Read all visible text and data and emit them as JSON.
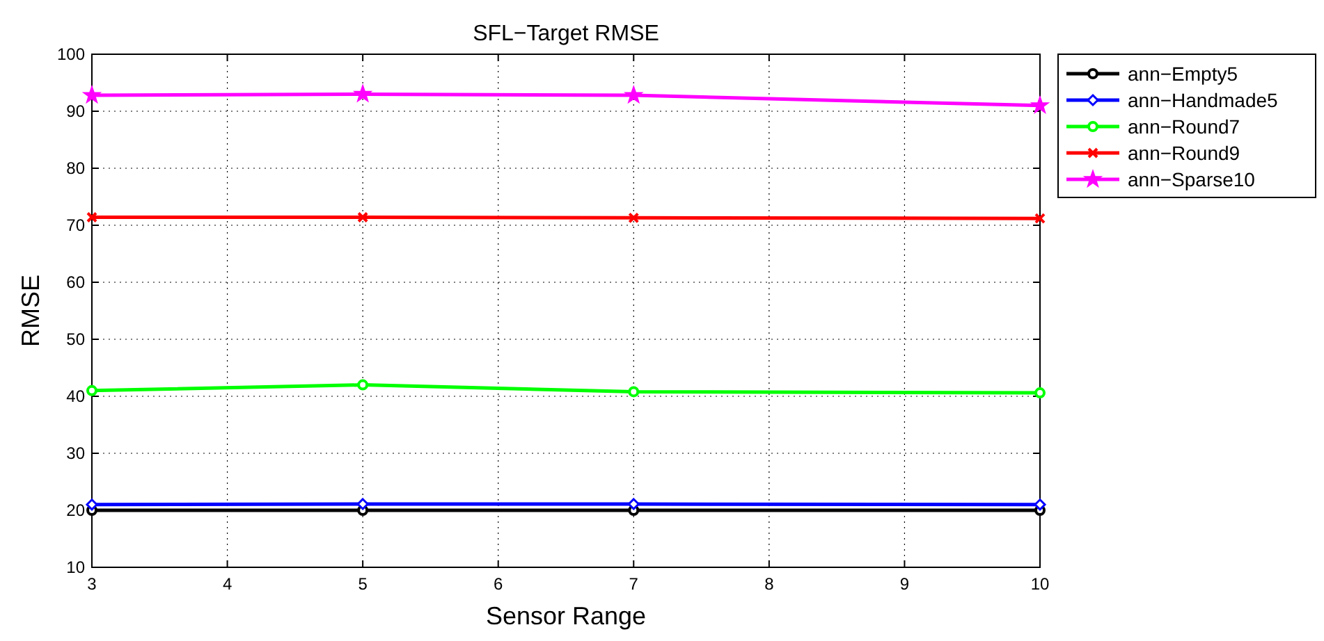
{
  "chart_data": {
    "type": "line",
    "title": "SFL−Target RMSE",
    "xlabel": "Sensor Range",
    "ylabel": "RMSE",
    "x": [
      3,
      5,
      7,
      10
    ],
    "series": [
      {
        "name": "ann−Empty5",
        "color": "#000000",
        "marker": "circle",
        "values": [
          20,
          20,
          20,
          20
        ]
      },
      {
        "name": "ann−Handmade5",
        "color": "#0000ff",
        "marker": "diamond",
        "values": [
          21,
          21.1,
          21.1,
          21
        ]
      },
      {
        "name": "ann−Round7",
        "color": "#00ff00",
        "marker": "circle",
        "values": [
          41,
          42,
          40.8,
          40.6
        ]
      },
      {
        "name": "ann−Round9",
        "color": "#ff0000",
        "marker": "cross",
        "values": [
          71.4,
          71.4,
          71.3,
          71.2
        ]
      },
      {
        "name": "ann−Sparse10",
        "color": "#ff00ff",
        "marker": "star",
        "values": [
          92.8,
          93,
          92.8,
          91
        ]
      }
    ],
    "xlim": [
      3,
      10
    ],
    "xticks": [
      3,
      4,
      5,
      6,
      7,
      8,
      9,
      10
    ],
    "ylim": [
      10,
      100
    ],
    "yticks": [
      10,
      20,
      30,
      40,
      50,
      60,
      70,
      80,
      90,
      100
    ],
    "grid": true,
    "legend": "top right",
    "line_style": "solid"
  }
}
